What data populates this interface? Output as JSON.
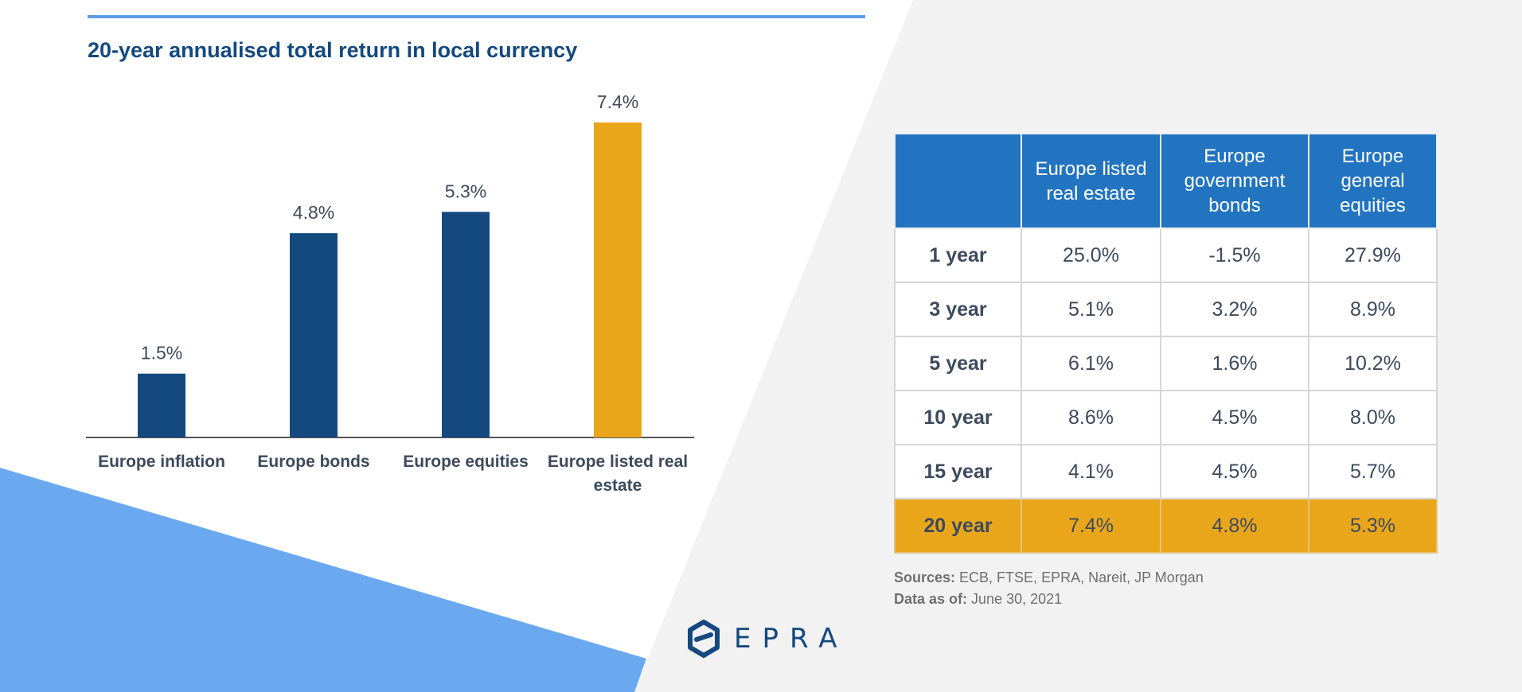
{
  "colors": {
    "bar_default": "#14497f",
    "bar_highlight": "#e9a61b",
    "title": "#14497f",
    "table_header_bg": "#2274c0",
    "background_gray": "#f2f2f2",
    "background_blue": "#6aa9ef"
  },
  "chart_data": {
    "type": "bar",
    "title": "20-year annualised total return in local currency",
    "categories": [
      "Europe inflation",
      "Europe bonds",
      "Europe equities",
      "Europe listed real estate"
    ],
    "values": [
      1.5,
      4.8,
      5.3,
      7.4
    ],
    "value_labels": [
      "1.5%",
      "4.8%",
      "5.3%",
      "7.4%"
    ],
    "highlight_index": 3,
    "ylim": [
      0,
      7.4
    ],
    "grid": false,
    "legend": "none"
  },
  "table": {
    "headers": [
      "",
      "Europe listed real estate",
      "Europe government bonds",
      "Europe general equities"
    ],
    "rows": [
      {
        "period": "1 year",
        "values": [
          "25.0%",
          "-1.5%",
          "27.9%"
        ]
      },
      {
        "period": "3 year",
        "values": [
          "5.1%",
          "3.2%",
          "8.9%"
        ]
      },
      {
        "period": "5 year",
        "values": [
          "6.1%",
          "1.6%",
          "10.2%"
        ]
      },
      {
        "period": "10 year",
        "values": [
          "8.6%",
          "4.5%",
          "8.0%"
        ]
      },
      {
        "period": "15 year",
        "values": [
          "4.1%",
          "4.5%",
          "5.7%"
        ]
      },
      {
        "period": "20 year",
        "values": [
          "7.4%",
          "4.8%",
          "5.3%"
        ]
      }
    ],
    "highlight_row": 5
  },
  "sources": {
    "sources_label": "Sources:",
    "sources_value": "ECB, FTSE, EPRA, Nareit, JP Morgan",
    "date_label": "Data as of:",
    "date_value": "June 30, 2021"
  },
  "logo": {
    "icon": "epra-logo-icon",
    "text": "EPRA"
  }
}
